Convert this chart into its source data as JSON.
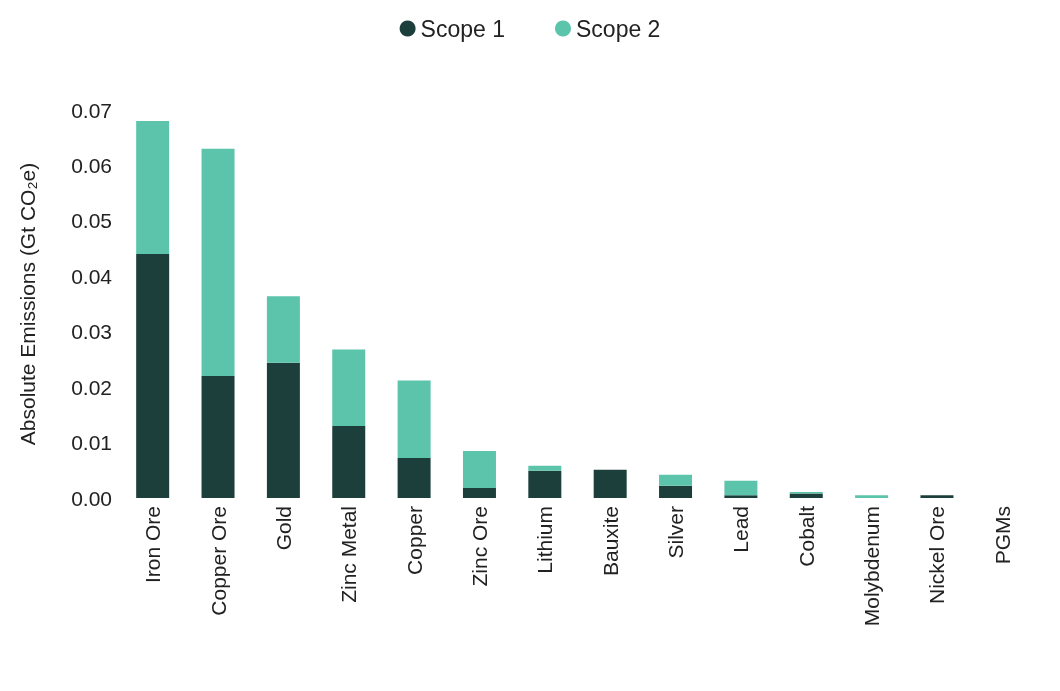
{
  "chart_data": {
    "type": "bar",
    "stacked": true,
    "ylabel": "Absolute Emissions (Gt CO₂e)",
    "categories": [
      "Iron Ore",
      "Copper Ore",
      "Gold",
      "Zinc Metal",
      "Copper",
      "Zinc Ore",
      "Lithium",
      "Bauxite",
      "Silver",
      "Lead",
      "Cobalt",
      "Molybdenum",
      "Nickel Ore",
      "PGMs"
    ],
    "series": [
      {
        "name": "Scope 1",
        "color": "#1d3f3c",
        "values": [
          0.044,
          0.022,
          0.0244,
          0.013,
          0.0072,
          0.0018,
          0.0049,
          0.0051,
          0.0022,
          0.0005,
          0.0008,
          null,
          0.0005,
          0
        ]
      },
      {
        "name": "Scope 2",
        "color": "#5cc4aa",
        "values": [
          0.024,
          0.041,
          0.012,
          0.0138,
          0.014,
          0.0067,
          0.0009,
          0,
          0.002,
          0.0026,
          0.0003,
          0.0005,
          null,
          0
        ]
      }
    ],
    "ylim": [
      0,
      0.07
    ],
    "yticks": [
      {
        "value": 0,
        "label": "0.00"
      },
      0.01,
      0.02,
      0.03,
      0.04,
      0.05,
      0.06,
      0.07
    ],
    "grid": false,
    "legend": "top"
  }
}
